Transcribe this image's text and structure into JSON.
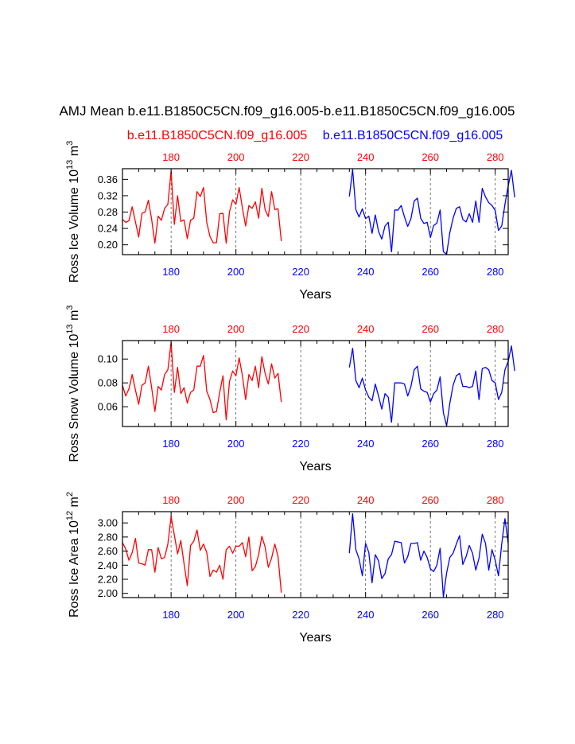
{
  "title": "AMJ Mean b.e11.B1850C5CN.f09_g16.005-b.e11.B1850C5CN.f09_g16.005",
  "legend": {
    "left_label": "b.e11.B1850C5CN.f09_g16.005",
    "right_label": "b.e11.B1850C5CN.f09_g16.005"
  },
  "colors": {
    "case1": "#ff0000",
    "case2": "#0000ff",
    "axis": "#000000"
  },
  "chart_data": [
    {
      "type": "line",
      "ylabel": "Ross Ice Volume 10^13 m^3",
      "ylabel_main": "Ross Ice Volume 10",
      "ylabel_exp": "13",
      "ylabel_unit": "m",
      "ylabel_unit_exp": "3",
      "xlabel": "Years",
      "xlim": [
        165,
        284
      ],
      "ylim": [
        0.176,
        0.386
      ],
      "yticks": [
        0.2,
        0.24,
        0.28,
        0.32,
        0.36
      ],
      "ytick_labels": [
        "0.20",
        "0.24",
        "0.28",
        "0.32",
        "0.36"
      ],
      "xticks": [
        180,
        200,
        220,
        240,
        260,
        280
      ],
      "xtick_labels": [
        "180",
        "200",
        "220",
        "240",
        "260",
        "280"
      ],
      "top_xticks": [
        180,
        200,
        220,
        240,
        260,
        280
      ],
      "top_xtick_labels": [
        "180",
        "200",
        "220",
        "240",
        "260",
        "280"
      ],
      "series": [
        {
          "name": "b.e11.B1850C5CN.f09_g16.005",
          "x0": 165,
          "values": [
            0.262,
            0.255,
            0.259,
            0.293,
            0.256,
            0.219,
            0.277,
            0.28,
            0.309,
            0.262,
            0.204,
            0.27,
            0.26,
            0.289,
            0.299,
            0.38,
            0.25,
            0.32,
            0.257,
            0.261,
            0.215,
            0.26,
            0.265,
            0.33,
            0.318,
            0.34,
            0.255,
            0.22,
            0.205,
            0.205,
            0.276,
            0.277,
            0.204,
            0.28,
            0.31,
            0.299,
            0.34,
            0.29,
            0.246,
            0.296,
            0.289,
            0.305,
            0.265,
            0.338,
            0.286,
            0.269,
            0.33,
            0.286,
            0.288,
            0.209
          ]
        },
        {
          "name": "b.e11.B1850C5CN.f09_g16.005",
          "x0": 235,
          "values": [
            0.318,
            0.384,
            0.286,
            0.268,
            0.288,
            0.264,
            0.27,
            0.228,
            0.273,
            0.233,
            0.214,
            0.246,
            0.255,
            0.183,
            0.285,
            0.285,
            0.296,
            0.268,
            0.245,
            0.264,
            0.307,
            0.314,
            0.265,
            0.252,
            0.255,
            0.218,
            0.247,
            0.253,
            0.285,
            0.183,
            0.177,
            0.23,
            0.265,
            0.289,
            0.293,
            0.262,
            0.256,
            0.276,
            0.255,
            0.307,
            0.255,
            0.338,
            0.317,
            0.303,
            0.296,
            0.284,
            0.235,
            0.246,
            0.299,
            0.344,
            0.382,
            0.316
          ]
        }
      ]
    },
    {
      "type": "line",
      "ylabel": "Ross Snow Volume 10^13 m^3",
      "ylabel_main": "Ross Snow Volume 10",
      "ylabel_exp": "13",
      "ylabel_unit": "m",
      "ylabel_unit_exp": "3",
      "xlabel": "Years",
      "xlim": [
        165,
        284
      ],
      "ylim": [
        0.0434,
        0.1155
      ],
      "yticks": [
        0.06,
        0.08,
        0.1
      ],
      "ytick_labels": [
        "0.06",
        "0.08",
        "0.10"
      ],
      "xticks": [
        180,
        200,
        220,
        240,
        260,
        280
      ],
      "xtick_labels": [
        "180",
        "200",
        "220",
        "240",
        "260",
        "280"
      ],
      "top_xticks": [
        180,
        200,
        220,
        240,
        260,
        280
      ],
      "top_xtick_labels": [
        "180",
        "200",
        "220",
        "240",
        "260",
        "280"
      ],
      "series": [
        {
          "name": "b.e11.B1850C5CN.f09_g16.005",
          "x0": 165,
          "values": [
            0.078,
            0.069,
            0.075,
            0.087,
            0.074,
            0.062,
            0.078,
            0.08,
            0.094,
            0.076,
            0.056,
            0.077,
            0.074,
            0.087,
            0.091,
            0.114,
            0.072,
            0.093,
            0.071,
            0.076,
            0.063,
            0.072,
            0.074,
            0.094,
            0.094,
            0.103,
            0.073,
            0.066,
            0.055,
            0.056,
            0.072,
            0.086,
            0.049,
            0.081,
            0.09,
            0.086,
            0.101,
            0.086,
            0.066,
            0.087,
            0.082,
            0.094,
            0.076,
            0.102,
            0.088,
            0.079,
            0.096,
            0.084,
            0.088,
            0.064
          ]
        },
        {
          "name": "b.e11.B1850C5CN.f09_g16.005",
          "x0": 235,
          "values": [
            0.093,
            0.109,
            0.082,
            0.076,
            0.084,
            0.074,
            0.068,
            0.065,
            0.079,
            0.069,
            0.058,
            0.071,
            0.068,
            0.047,
            0.08,
            0.08,
            0.08,
            0.079,
            0.069,
            0.077,
            0.091,
            0.094,
            0.075,
            0.073,
            0.072,
            0.064,
            0.071,
            0.074,
            0.085,
            0.055,
            0.044,
            0.063,
            0.078,
            0.086,
            0.088,
            0.077,
            0.077,
            0.076,
            0.077,
            0.09,
            0.066,
            0.092,
            0.093,
            0.091,
            0.082,
            0.08,
            0.066,
            0.072,
            0.091,
            0.098,
            0.111,
            0.09
          ]
        }
      ]
    },
    {
      "type": "line",
      "ylabel": "Ross Ice Area 10^12 m^2",
      "ylabel_main": "Ross Ice Area 10",
      "ylabel_exp": "12",
      "ylabel_unit": "m",
      "ylabel_unit_exp": "2",
      "xlabel": "Years",
      "xlim": [
        165,
        284
      ],
      "ylim": [
        1.94,
        3.16
      ],
      "yticks": [
        2.0,
        2.2,
        2.4,
        2.6,
        2.8,
        3.0
      ],
      "ytick_labels": [
        "2.00",
        "2.20",
        "2.40",
        "2.60",
        "2.80",
        "3.00"
      ],
      "xticks": [
        180,
        200,
        220,
        240,
        260,
        280
      ],
      "xtick_labels": [
        "180",
        "200",
        "220",
        "240",
        "260",
        "280"
      ],
      "top_xticks": [
        180,
        200,
        220,
        240,
        260,
        280
      ],
      "top_xtick_labels": [
        "180",
        "200",
        "220",
        "240",
        "260",
        "280"
      ],
      "series": [
        {
          "name": "b.e11.B1850C5CN.f09_g16.005",
          "x0": 165,
          "values": [
            2.72,
            2.63,
            2.47,
            2.58,
            2.78,
            2.43,
            2.42,
            2.4,
            2.62,
            2.62,
            2.3,
            2.65,
            2.49,
            2.51,
            2.7,
            3.09,
            2.83,
            2.56,
            2.75,
            2.42,
            2.11,
            2.68,
            2.74,
            2.9,
            2.61,
            2.7,
            2.58,
            2.24,
            2.33,
            2.3,
            2.4,
            2.2,
            2.62,
            2.67,
            2.57,
            2.67,
            2.67,
            2.72,
            2.52,
            2.8,
            2.32,
            2.38,
            2.55,
            2.81,
            2.66,
            2.37,
            2.5,
            2.7,
            2.52,
            2.01
          ]
        },
        {
          "name": "b.e11.B1850C5CN.f09_g16.005",
          "x0": 235,
          "values": [
            2.57,
            3.13,
            2.62,
            2.49,
            2.25,
            2.71,
            2.58,
            2.15,
            2.55,
            2.46,
            2.21,
            2.28,
            2.49,
            2.55,
            2.74,
            2.73,
            2.72,
            2.43,
            2.52,
            2.71,
            2.71,
            2.72,
            2.47,
            2.6,
            2.51,
            2.35,
            2.31,
            2.4,
            2.64,
            1.95,
            2.29,
            2.51,
            2.57,
            2.7,
            2.82,
            2.41,
            2.52,
            2.68,
            2.57,
            2.33,
            2.5,
            2.84,
            2.71,
            2.33,
            2.62,
            2.47,
            2.25,
            2.7,
            3.06,
            2.71
          ]
        }
      ]
    }
  ]
}
